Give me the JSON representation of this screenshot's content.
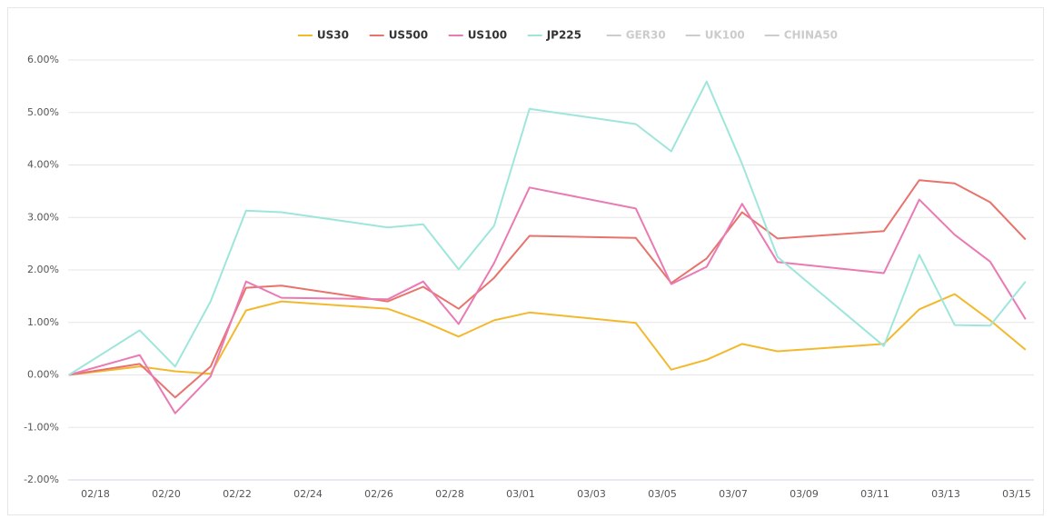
{
  "chart_data": {
    "type": "line",
    "x": [
      "02/17",
      "02/19",
      "02/20",
      "02/21",
      "02/22",
      "02/23",
      "02/26",
      "02/27",
      "02/28",
      "02/29",
      "03/01",
      "03/04",
      "03/05",
      "03/06",
      "03/07",
      "03/08",
      "03/11",
      "03/12",
      "03/13",
      "03/14",
      "03/15"
    ],
    "series": [
      {
        "name": "US30",
        "color": "#f3b92e",
        "values": [
          0,
          0.16,
          0.07,
          0.02,
          1.23,
          1.4,
          1.26,
          1.02,
          0.73,
          1.04,
          1.19,
          0.99,
          0.1,
          0.29,
          0.59,
          0.45,
          0.59,
          1.25,
          1.54,
          1.04,
          0.48
        ]
      },
      {
        "name": "US500",
        "color": "#e8736c",
        "values": [
          0,
          0.21,
          -0.43,
          0.16,
          1.66,
          1.7,
          1.4,
          1.68,
          1.26,
          1.85,
          2.65,
          2.61,
          1.75,
          2.22,
          3.1,
          2.6,
          2.74,
          3.71,
          3.65,
          3.29,
          2.58
        ]
      },
      {
        "name": "US100",
        "color": "#ea7ab4",
        "values": [
          0,
          0.38,
          -0.73,
          -0.03,
          1.78,
          1.47,
          1.44,
          1.78,
          0.97,
          2.13,
          3.57,
          3.17,
          1.73,
          2.06,
          3.26,
          2.15,
          1.94,
          3.34,
          2.67,
          2.16,
          1.06
        ]
      },
      {
        "name": "JP225",
        "color": "#9ee6dc",
        "values": [
          0,
          0.85,
          0.16,
          1.4,
          3.13,
          3.1,
          2.81,
          2.87,
          2.01,
          2.84,
          5.07,
          4.78,
          4.26,
          5.59,
          4.02,
          2.25,
          0.55,
          2.29,
          0.95,
          0.94,
          1.78
        ]
      },
      {
        "name": "GER30",
        "color": "#cccccc",
        "visible": false
      },
      {
        "name": "UK100",
        "color": "#cccccc",
        "visible": false
      },
      {
        "name": "CHINA50",
        "color": "#cccccc",
        "visible": false
      }
    ],
    "ylim": [
      -2,
      6
    ],
    "yticks": [
      {
        "value": -2,
        "label": "-2.00%"
      },
      {
        "value": -1,
        "label": "-1.00%"
      },
      {
        "value": 0,
        "label": "0.00%"
      },
      {
        "value": 1,
        "label": "1.00%"
      },
      {
        "value": 2,
        "label": "2.00%"
      },
      {
        "value": 3,
        "label": "3.00%"
      },
      {
        "value": 4,
        "label": "4.00%"
      },
      {
        "value": 5,
        "label": "5.00%"
      },
      {
        "value": 6,
        "label": "6.00%"
      }
    ],
    "xticks": [
      "02/18",
      "02/20",
      "02/22",
      "02/24",
      "02/26",
      "02/28",
      "03/01",
      "03/03",
      "03/05",
      "03/07",
      "03/09",
      "03/11",
      "03/13",
      "03/15"
    ],
    "grid": true,
    "legend": "top"
  }
}
